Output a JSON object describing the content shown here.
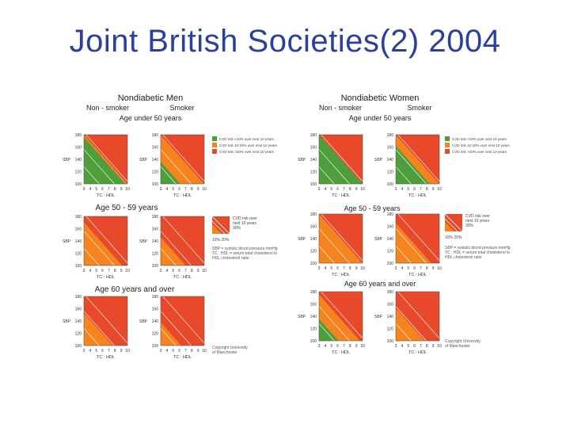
{
  "slide_title": "Joint British Societies(2) 2004",
  "colors": {
    "green": "#4f9e3c",
    "orange": "#f5841f",
    "red": "#e8492a",
    "line": "#ffffff",
    "frame": "#555555"
  },
  "men": {
    "title": "Nondiabetic Men",
    "col_nonsmoker": "Non - smoker",
    "col_smoker": "Smoker",
    "band1": "Age under 50 years",
    "band2": "Age 50 - 59 years",
    "band3": "Age 60 years and over",
    "legend": [
      "CVD risk <10% over next 10 years",
      "CVD risk 10-20% over next 10 years",
      "CVD risk >20% over next 10 years"
    ],
    "key_lines": [
      "CVD risk over",
      "next 10 years",
      "30%"
    ],
    "key_pct": "10%  20%",
    "note_lines": [
      "SBP = systolic blood pressure mmHg",
      "TC : HDL = serum total cholesterol to",
      "HDL cholesterol ratio"
    ],
    "copyright": [
      "Copyright University",
      "of Manchester"
    ]
  },
  "women": {
    "title": "Nondiabetic Women",
    "col_nonsmoker": "Non - smoker",
    "col_smoker": "Smoker",
    "band1": "Age under 50 years",
    "band2": "Age 50 - 59 years",
    "band3": "Age 60 years and over",
    "legend": [
      "CVD risk <10% over next 10 years",
      "CVD risk 10-20% over next 10 years",
      "CVD risk >20% over next 10 years"
    ],
    "key_lines": [
      "CVD risk over",
      "next 10 years",
      "30%"
    ],
    "key_pct": "10%  20%",
    "note_lines": [
      "SBP = systolic blood pressure mmHg",
      "TC : HDL = serum total cholesterol to",
      "HDL cholesterol ratio"
    ],
    "copyright": [
      "Copyright University",
      "of Manchester"
    ]
  },
  "chart_data": {
    "type": "heatmap",
    "xlabel": "TC : HDL",
    "ylabel": "SBP",
    "x_ticks": [
      3,
      4,
      5,
      6,
      7,
      8,
      9,
      10
    ],
    "y_ticks": [
      180,
      160,
      140,
      120,
      100
    ],
    "xlim": [
      3,
      10
    ],
    "ylim": [
      100,
      180
    ],
    "categories": [
      "<10%",
      "10-20%",
      ">20%"
    ],
    "panels": [
      {
        "group": "Nondiabetic Men",
        "age": "Age under 50 years",
        "smoking": "Non - smoker",
        "green_area": 0.45,
        "orange_area": 0.3,
        "red_area": 0.25
      },
      {
        "group": "Nondiabetic Men",
        "age": "Age under 50 years",
        "smoking": "Smoker",
        "green_area": 0.1,
        "orange_area": 0.35,
        "red_area": 0.55
      },
      {
        "group": "Nondiabetic Men",
        "age": "Age 50 - 59 years",
        "smoking": "Non - smoker",
        "green_area": 0.0,
        "orange_area": 0.35,
        "red_area": 0.65
      },
      {
        "group": "Nondiabetic Men",
        "age": "Age 50 - 59 years",
        "smoking": "Smoker",
        "green_area": 0.0,
        "orange_area": 0.15,
        "red_area": 0.85
      },
      {
        "group": "Nondiabetic Men",
        "age": "Age 60 years and over",
        "smoking": "Non - smoker",
        "green_area": 0.0,
        "orange_area": 0.2,
        "red_area": 0.8
      },
      {
        "group": "Nondiabetic Men",
        "age": "Age 60 years and over",
        "smoking": "Smoker",
        "green_area": 0.0,
        "orange_area": 0.1,
        "red_area": 0.9
      },
      {
        "group": "Nondiabetic Women",
        "age": "Age under 50 years",
        "smoking": "Non - smoker",
        "green_area": 0.6,
        "orange_area": 0.25,
        "red_area": 0.15
      },
      {
        "group": "Nondiabetic Women",
        "age": "Age under 50 years",
        "smoking": "Smoker",
        "green_area": 0.3,
        "orange_area": 0.35,
        "red_area": 0.35
      },
      {
        "group": "Nondiabetic Women",
        "age": "Age 50 - 59 years",
        "smoking": "Non - smoker",
        "green_area": 0.0,
        "orange_area": 0.55,
        "red_area": 0.45
      },
      {
        "group": "Nondiabetic Women",
        "age": "Age 50 - 59 years",
        "smoking": "Smoker",
        "green_area": 0.0,
        "orange_area": 0.3,
        "red_area": 0.7
      },
      {
        "group": "Nondiabetic Women",
        "age": "Age 60 years and over",
        "smoking": "Non - smoker",
        "green_area": 0.1,
        "orange_area": 0.3,
        "red_area": 0.6
      },
      {
        "group": "Nondiabetic Women",
        "age": "Age 60 years and over",
        "smoking": "Smoker",
        "green_area": 0.0,
        "orange_area": 0.2,
        "red_area": 0.8
      }
    ]
  }
}
